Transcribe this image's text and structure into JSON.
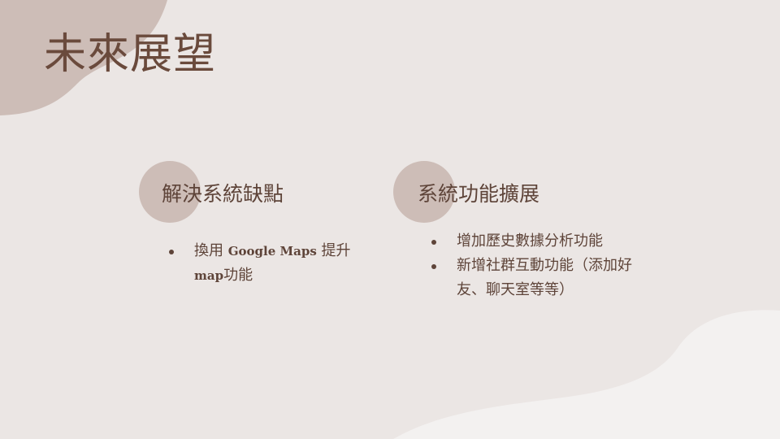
{
  "slide": {
    "title": "未來展望",
    "colors": {
      "background": "#ebe6e4",
      "blob": "#cdbdb7",
      "wave": "#f3f1f0",
      "text": "#5e4439"
    }
  },
  "columns": [
    {
      "heading": "解決系統缺點",
      "bullets": [
        {
          "part1": "換用 ",
          "part2": "Google Maps",
          "part3": " 提升 ",
          "part4": "map",
          "part5": "功能"
        }
      ]
    },
    {
      "heading": "系統功能擴展",
      "bullets": [
        "增加歷史數據分析功能",
        "新增社群互動功能（添加好友、聊天室等等）"
      ]
    }
  ]
}
